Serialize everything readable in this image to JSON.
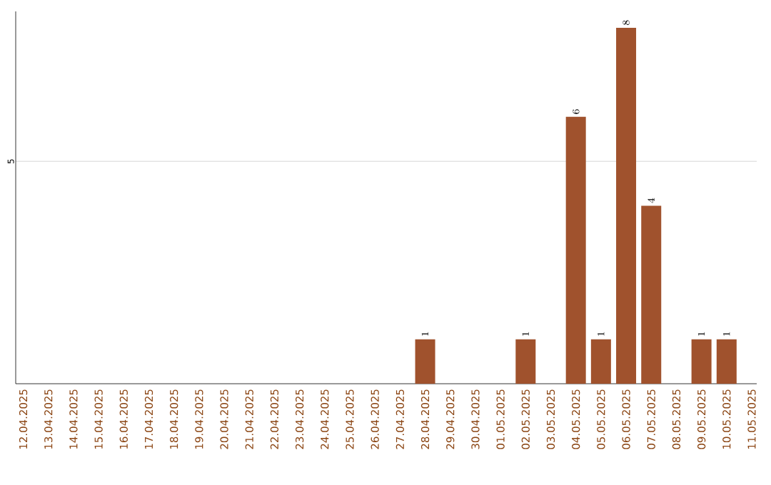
{
  "chart_data": {
    "type": "bar",
    "categories": [
      "12.04.2025",
      "13.04.2025",
      "14.04.2025",
      "15.04.2025",
      "16.04.2025",
      "17.04.2025",
      "18.04.2025",
      "19.04.2025",
      "20.04.2025",
      "21.04.2025",
      "22.04.2025",
      "23.04.2025",
      "24.04.2025",
      "25.04.2025",
      "26.04.2025",
      "27.04.2025",
      "28.04.2025",
      "29.04.2025",
      "30.04.2025",
      "01.05.2025",
      "02.05.2025",
      "03.05.2025",
      "04.05.2025",
      "05.05.2025",
      "06.05.2025",
      "07.05.2025",
      "08.05.2025",
      "09.05.2025",
      "10.05.2025",
      "11.05.2025"
    ],
    "values": [
      null,
      null,
      null,
      null,
      null,
      null,
      null,
      null,
      null,
      null,
      null,
      null,
      null,
      null,
      null,
      null,
      1,
      null,
      null,
      null,
      1,
      null,
      6,
      1,
      8,
      4,
      null,
      1,
      1,
      null
    ],
    "color": "#a0522d",
    "ylim": [
      0,
      8.37
    ],
    "yticks": [
      5
    ],
    "grid": "y",
    "data_labels": true
  }
}
